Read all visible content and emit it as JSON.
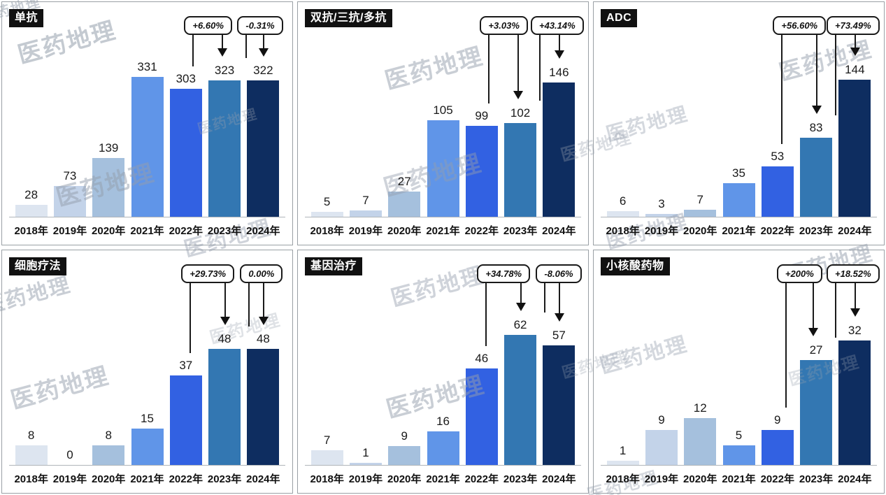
{
  "watermark": {
    "text": "医药地理"
  },
  "years": [
    "2018年",
    "2019年",
    "2020年",
    "2021年",
    "2022年",
    "2023年",
    "2024年"
  ],
  "style": {
    "bar_colors_by_year": [
      "#dde5f0",
      "#c3d3e9",
      "#a5c0dd",
      "#6095e8",
      "#3261e2",
      "#3377b2",
      "#0e2d60"
    ],
    "callout_border": "#1a1a1a",
    "axis_color": "#b0b5ba",
    "badge_bg": "#111111",
    "badge_text": "#ffffff"
  },
  "chart_data": [
    {
      "type": "bar",
      "title": "单抗",
      "categories": [
        "2018年",
        "2019年",
        "2020年",
        "2021年",
        "2022年",
        "2023年",
        "2024年"
      ],
      "values": [
        28,
        73,
        139,
        331,
        303,
        323,
        322
      ],
      "xlabel": "",
      "ylabel": "",
      "grid": false,
      "legend": false,
      "annotations": [
        {
          "text": "+6.60%",
          "from_category": "2022年",
          "to_category": "2023年",
          "from": 4,
          "to": 5
        },
        {
          "text": "-0.31%",
          "from_category": "2023年",
          "to_category": "2024年",
          "from": 5,
          "to": 6
        }
      ]
    },
    {
      "type": "bar",
      "title": "双抗/三抗/多抗",
      "categories": [
        "2018年",
        "2019年",
        "2020年",
        "2021年",
        "2022年",
        "2023年",
        "2024年"
      ],
      "values": [
        5,
        7,
        27,
        105,
        99,
        102,
        146
      ],
      "xlabel": "",
      "ylabel": "",
      "grid": false,
      "legend": false,
      "annotations": [
        {
          "text": "+3.03%",
          "from_category": "2022年",
          "to_category": "2023年",
          "from": 4,
          "to": 5
        },
        {
          "text": "+43.14%",
          "from_category": "2023年",
          "to_category": "2024年",
          "from": 5,
          "to": 6
        }
      ]
    },
    {
      "type": "bar",
      "title": "ADC",
      "categories": [
        "2018年",
        "2019年",
        "2020年",
        "2021年",
        "2022年",
        "2023年",
        "2024年"
      ],
      "values": [
        6,
        3,
        7,
        35,
        53,
        83,
        144
      ],
      "xlabel": "",
      "ylabel": "",
      "grid": false,
      "legend": false,
      "annotations": [
        {
          "text": "+56.60%",
          "from_category": "2022年",
          "to_category": "2023年",
          "from": 4,
          "to": 5
        },
        {
          "text": "+73.49%",
          "from_category": "2023年",
          "to_category": "2024年",
          "from": 5,
          "to": 6
        }
      ]
    },
    {
      "type": "bar",
      "title": "细胞疗法",
      "categories": [
        "2018年",
        "2019年",
        "2020年",
        "2021年",
        "2022年",
        "2023年",
        "2024年"
      ],
      "values": [
        8,
        0,
        8,
        15,
        37,
        48,
        48
      ],
      "xlabel": "",
      "ylabel": "",
      "grid": false,
      "legend": false,
      "annotations": [
        {
          "text": "+29.73%",
          "from_category": "2022年",
          "to_category": "2023年",
          "from": 4,
          "to": 5
        },
        {
          "text": "0.00%",
          "from_category": "2023年",
          "to_category": "2024年",
          "from": 5,
          "to": 6
        }
      ]
    },
    {
      "type": "bar",
      "title": "基因治疗",
      "categories": [
        "2018年",
        "2019年",
        "2020年",
        "2021年",
        "2022年",
        "2023年",
        "2024年"
      ],
      "values": [
        7,
        1,
        9,
        16,
        46,
        62,
        57
      ],
      "xlabel": "",
      "ylabel": "",
      "grid": false,
      "legend": false,
      "annotations": [
        {
          "text": "+34.78%",
          "from_category": "2022年",
          "to_category": "2023年",
          "from": 4,
          "to": 5
        },
        {
          "text": "-8.06%",
          "from_category": "2023年",
          "to_category": "2024年",
          "from": 5,
          "to": 6
        }
      ]
    },
    {
      "type": "bar",
      "title": "小核酸药物",
      "categories": [
        "2018年",
        "2019年",
        "2020年",
        "2021年",
        "2022年",
        "2023年",
        "2024年"
      ],
      "values": [
        1,
        9,
        12,
        5,
        9,
        27,
        32
      ],
      "xlabel": "",
      "ylabel": "",
      "grid": false,
      "legend": false,
      "annotations": [
        {
          "text": "+200%",
          "from_category": "2022年",
          "to_category": "2023年",
          "from": 4,
          "to": 5
        },
        {
          "text": "+18.52%",
          "from_category": "2023年",
          "to_category": "2024年",
          "from": 5,
          "to": 6
        }
      ]
    }
  ]
}
